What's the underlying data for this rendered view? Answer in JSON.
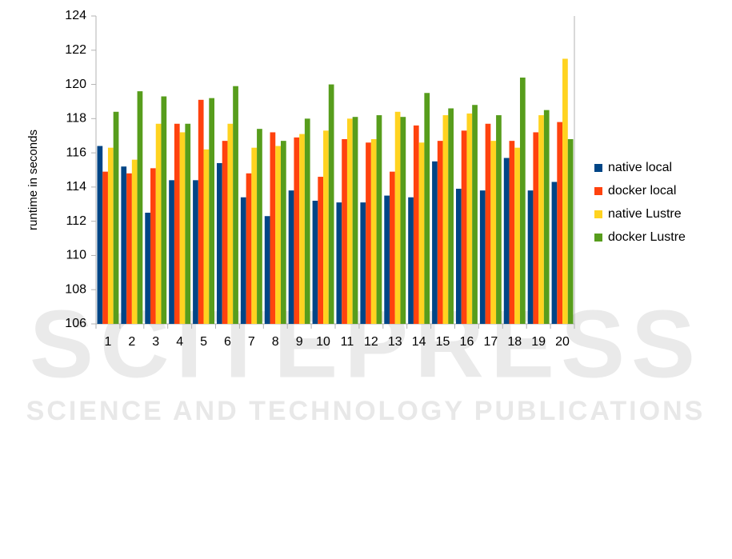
{
  "chart_data": {
    "type": "bar",
    "y_label": "runtime in seconds",
    "categories": [
      "1",
      "2",
      "3",
      "4",
      "5",
      "6",
      "7",
      "8",
      "9",
      "10",
      "11",
      "12",
      "13",
      "14",
      "15",
      "16",
      "17",
      "18",
      "19",
      "20"
    ],
    "series": [
      {
        "name": "native local",
        "color": "#004586",
        "values": [
          116.4,
          115.2,
          112.5,
          114.4,
          114.4,
          115.4,
          113.4,
          112.3,
          113.8,
          113.2,
          113.1,
          113.1,
          113.5,
          113.4,
          115.5,
          113.9,
          113.8,
          115.7,
          113.8,
          114.3
        ]
      },
      {
        "name": "docker local",
        "color": "#ff420e",
        "values": [
          114.9,
          114.8,
          115.1,
          117.7,
          119.1,
          116.7,
          114.8,
          117.2,
          116.9,
          114.6,
          116.8,
          116.6,
          114.9,
          117.6,
          116.7,
          117.3,
          117.7,
          116.7,
          117.2,
          117.8
        ]
      },
      {
        "name": "native Lustre",
        "color": "#ffd320",
        "values": [
          116.3,
          115.6,
          117.7,
          117.2,
          116.2,
          117.7,
          116.3,
          116.4,
          117.1,
          117.3,
          118.0,
          116.8,
          118.4,
          116.6,
          118.2,
          118.3,
          116.7,
          116.3,
          118.2,
          121.5
        ]
      },
      {
        "name": "docker Lustre",
        "color": "#579d1c",
        "values": [
          118.4,
          119.6,
          119.3,
          117.7,
          119.2,
          119.9,
          117.4,
          116.7,
          118.0,
          120.0,
          118.1,
          118.2,
          118.1,
          119.5,
          118.6,
          118.8,
          118.2,
          120.4,
          118.5,
          116.8
        ]
      }
    ],
    "ylim": [
      106,
      124
    ],
    "yticks": [
      106,
      108,
      110,
      112,
      114,
      116,
      118,
      120,
      122,
      124
    ],
    "grid": false,
    "legend": "right",
    "watermark": [
      "SCITEPRESS",
      "SCIENCE AND TECHNOLOGY PUBLICATIONS"
    ]
  }
}
